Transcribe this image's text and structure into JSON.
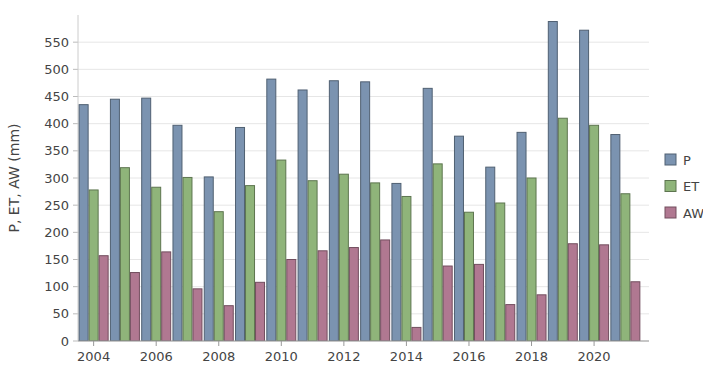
{
  "chart_data": {
    "type": "bar",
    "y_label": "P, ET, AW (mm)",
    "categories": [
      "2004",
      null,
      "2006",
      null,
      "2008",
      null,
      "2010",
      null,
      "2012",
      null,
      "2014",
      null,
      "2016",
      null,
      "2018",
      null,
      "2020",
      null
    ],
    "series": [
      {
        "name": "P",
        "color": "#7b93b0",
        "values": [
          435,
          445,
          447,
          397,
          302,
          393,
          482,
          462,
          479,
          477,
          290,
          465,
          377,
          320,
          384,
          588,
          572,
          380
        ]
      },
      {
        "name": "ET",
        "color": "#8fb47a",
        "values": [
          278,
          319,
          283,
          301,
          238,
          286,
          333,
          295,
          307,
          291,
          266,
          326,
          237,
          254,
          300,
          410,
          397,
          271
        ]
      },
      {
        "name": "AW",
        "color": "#b07891",
        "values": [
          157,
          126,
          164,
          96,
          65,
          108,
          150,
          166,
          172,
          186,
          25,
          138,
          141,
          67,
          85,
          179,
          177,
          109
        ]
      }
    ],
    "ylim": [
      0,
      600
    ],
    "yticks": [
      0,
      50,
      100,
      150,
      200,
      250,
      300,
      350,
      400,
      450,
      500,
      550
    ],
    "grid": true,
    "legend": "right"
  }
}
